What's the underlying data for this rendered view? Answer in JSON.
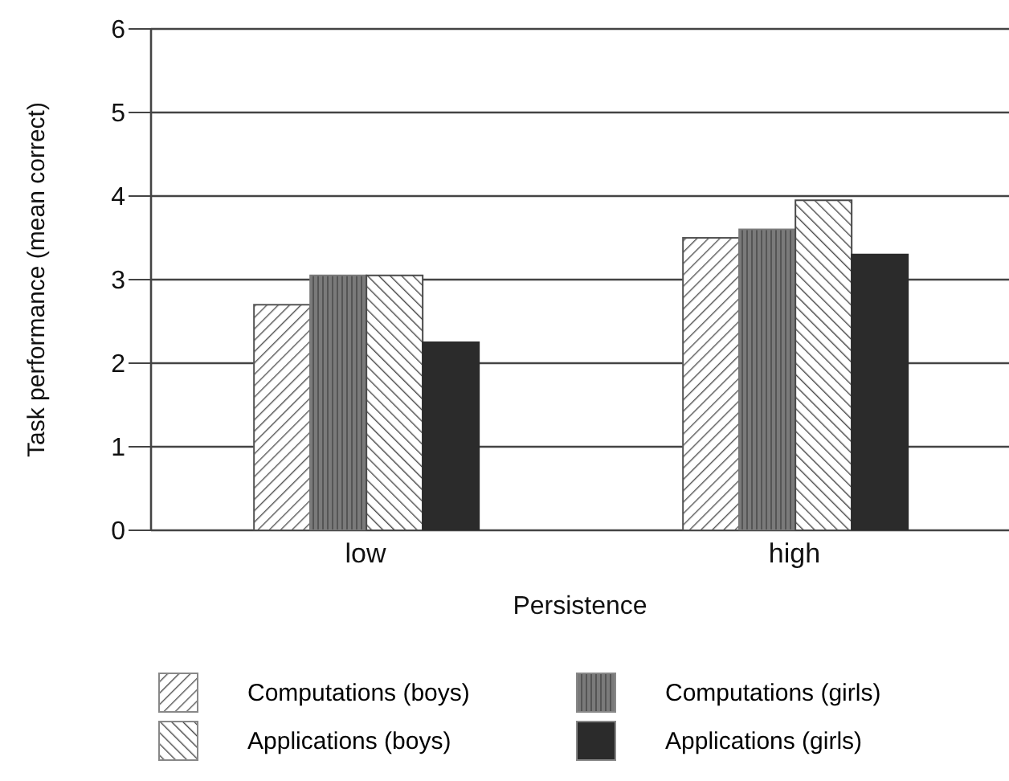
{
  "chart_data": {
    "type": "bar",
    "xlabel": "Persistence",
    "ylabel": "Task performance (mean correct)",
    "categories": [
      "low",
      "high"
    ],
    "series": [
      {
        "name": "Computations (boys)",
        "color": "#555555",
        "values": [
          2.7,
          3.5
        ]
      },
      {
        "name": "Computations (girls)",
        "color": "#7a7a7a",
        "values": [
          3.05,
          3.6
        ]
      },
      {
        "name": "Applications (boys)",
        "color": "#4a4a4a",
        "values": [
          3.05,
          3.95
        ]
      },
      {
        "name": "Applications (girls)",
        "color": "#2b2b2b",
        "values": [
          2.25,
          3.3
        ]
      }
    ],
    "ylim": [
      0,
      6
    ],
    "yticks": [
      0,
      1,
      2,
      3,
      4,
      5,
      6
    ],
    "grid": "y",
    "legend": "bottom"
  }
}
